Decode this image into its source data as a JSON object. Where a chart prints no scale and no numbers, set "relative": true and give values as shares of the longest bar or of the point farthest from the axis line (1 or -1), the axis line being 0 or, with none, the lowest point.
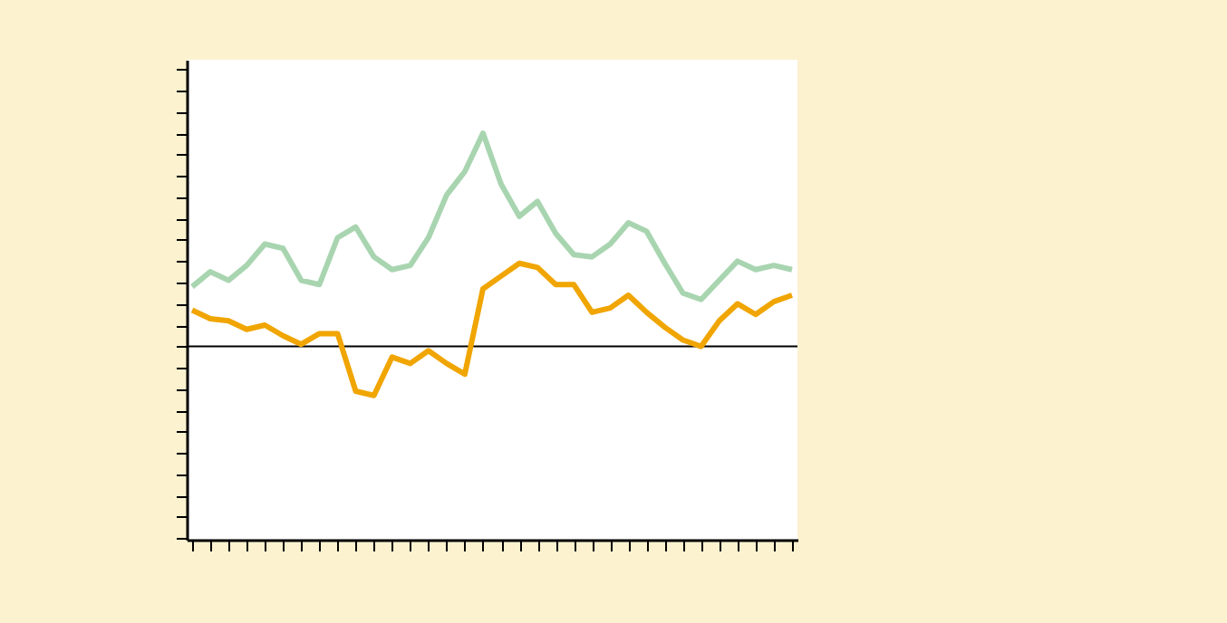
{
  "chart_data": {
    "type": "line",
    "relative": true,
    "grid": false,
    "categories": [
      null,
      null,
      null,
      null,
      null,
      null,
      null,
      null,
      null,
      null,
      null,
      null,
      null,
      null,
      null,
      null,
      null,
      null,
      null,
      null,
      null,
      null,
      null,
      null,
      null,
      null,
      null,
      null,
      null,
      null,
      null,
      null,
      null,
      null
    ],
    "series": [
      {
        "color": "#a8d5b0",
        "values": [
          0.28,
          0.35,
          0.31,
          0.38,
          0.48,
          0.46,
          0.31,
          0.29,
          0.51,
          0.56,
          0.42,
          0.36,
          0.38,
          0.51,
          0.71,
          0.82,
          1.0,
          0.76,
          0.61,
          0.68,
          0.53,
          0.43,
          0.42,
          0.48,
          0.58,
          0.54,
          0.39,
          0.25,
          0.22,
          0.31,
          0.4,
          0.36,
          0.38,
          0.36
        ]
      },
      {
        "color": "#f0a500",
        "values": [
          0.17,
          0.13,
          0.12,
          0.08,
          0.1,
          0.05,
          0.01,
          0.06,
          0.06,
          -0.21,
          -0.23,
          -0.05,
          -0.08,
          -0.02,
          -0.08,
          -0.13,
          0.27,
          0.33,
          0.39,
          0.37,
          0.29,
          0.29,
          0.16,
          0.18,
          0.24,
          0.16,
          0.09,
          0.03,
          0.0,
          0.12,
          0.2,
          0.15,
          0.21,
          0.24
        ]
      }
    ]
  }
}
